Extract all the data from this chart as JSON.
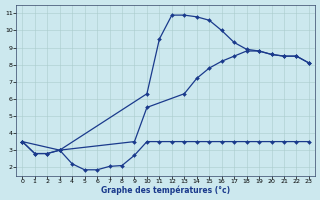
{
  "xlabel": "Graphe des températures (°c)",
  "xlim_min": -0.5,
  "xlim_max": 23.5,
  "ylim_min": 1.5,
  "ylim_max": 11.5,
  "xticks": [
    0,
    1,
    2,
    3,
    4,
    5,
    6,
    7,
    8,
    9,
    10,
    11,
    12,
    13,
    14,
    15,
    16,
    17,
    18,
    19,
    20,
    21,
    22,
    23
  ],
  "yticks": [
    2,
    3,
    4,
    5,
    6,
    7,
    8,
    9,
    10,
    11
  ],
  "background_color": "#cce8ee",
  "line_color": "#1a3a8c",
  "grid_color": "#aacccc",
  "curve_peak_x": [
    0,
    1,
    2,
    3,
    10,
    11,
    12,
    13,
    14,
    15,
    16,
    17,
    18,
    19,
    20,
    21,
    22,
    23
  ],
  "curve_peak_y": [
    3.5,
    2.8,
    2.8,
    3.0,
    6.3,
    9.5,
    10.9,
    10.9,
    10.8,
    10.6,
    10.0,
    9.3,
    8.9,
    8.8,
    8.6,
    8.5,
    8.5,
    8.1
  ],
  "curve_low_x": [
    0,
    1,
    2,
    3,
    4,
    5,
    6,
    7,
    8,
    9,
    10,
    11,
    12,
    13,
    14,
    15,
    16,
    17,
    18,
    19,
    20,
    21,
    22,
    23
  ],
  "curve_low_y": [
    3.5,
    2.8,
    2.8,
    3.0,
    2.2,
    1.85,
    1.85,
    2.05,
    2.1,
    2.7,
    3.5,
    3.5,
    3.5,
    3.5,
    3.5,
    3.5,
    3.5,
    3.5,
    3.5,
    3.5,
    3.5,
    3.5,
    3.5,
    3.5
  ],
  "curve_diag_x": [
    0,
    3,
    9,
    10,
    13,
    14,
    15,
    16,
    17,
    18,
    19,
    20,
    21,
    22,
    23
  ],
  "curve_diag_y": [
    3.5,
    3.0,
    3.5,
    5.5,
    6.3,
    7.2,
    7.8,
    8.2,
    8.5,
    8.8,
    8.8,
    8.6,
    8.5,
    8.5,
    8.1
  ]
}
